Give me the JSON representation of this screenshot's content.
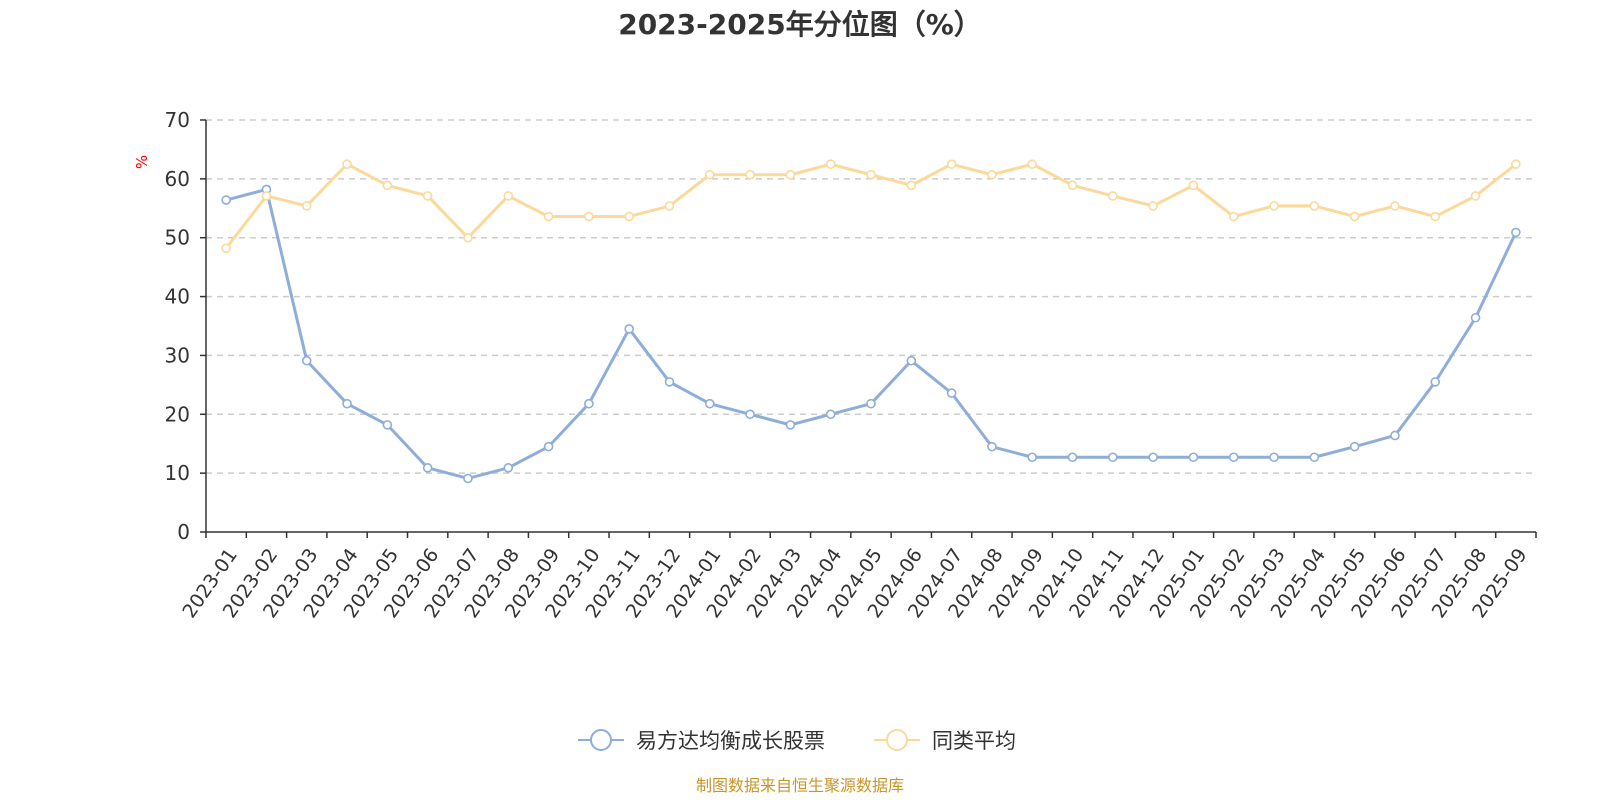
{
  "chart_data": {
    "type": "line",
    "title": "2023-2025年分位图（%）",
    "ylabel": "%",
    "xlabel": "",
    "ylim": [
      0,
      70
    ],
    "yticks": [
      0,
      10,
      20,
      30,
      40,
      50,
      60,
      70
    ],
    "grid": true,
    "legend_position": "bottom-center",
    "categories": [
      "2023-01",
      "2023-02",
      "2023-03",
      "2023-04",
      "2023-05",
      "2023-06",
      "2023-07",
      "2023-08",
      "2023-09",
      "2023-10",
      "2023-11",
      "2023-12",
      "2024-01",
      "2024-02",
      "2024-03",
      "2024-04",
      "2024-05",
      "2024-06",
      "2024-07",
      "2024-08",
      "2024-09",
      "2024-10",
      "2024-11",
      "2024-12",
      "2025-01",
      "2025-02",
      "2025-03",
      "2025-04",
      "2025-05",
      "2025-06",
      "2025-07",
      "2025-08",
      "2025-09"
    ],
    "series": [
      {
        "name": "易方达均衡成长股票",
        "color": "#8eadd9",
        "values": [
          56.4,
          58.2,
          29.1,
          21.8,
          18.2,
          10.9,
          9.1,
          10.9,
          14.5,
          21.8,
          34.5,
          25.5,
          21.8,
          20.0,
          18.2,
          20.0,
          21.8,
          29.1,
          23.6,
          14.5,
          12.7,
          12.7,
          12.7,
          12.7,
          12.7,
          12.7,
          12.7,
          12.7,
          14.5,
          16.4,
          25.5,
          36.4,
          50.9
        ]
      },
      {
        "name": "同类平均",
        "color": "#fbd99a",
        "values": [
          48.2,
          57.1,
          55.4,
          62.5,
          58.9,
          57.1,
          50.0,
          57.1,
          53.6,
          53.6,
          53.6,
          55.4,
          60.7,
          60.7,
          60.7,
          62.5,
          60.7,
          58.9,
          62.5,
          60.7,
          62.5,
          58.9,
          57.1,
          55.4,
          58.9,
          53.6,
          55.4,
          55.4,
          53.6,
          55.4,
          53.6,
          57.1,
          62.5
        ]
      }
    ],
    "source": "制图数据来自恒生聚源数据库",
    "source_color": "#c8952a",
    "ylabel_color": "#ff0000",
    "axis_color": "#333333",
    "grid_color": "#cccccc"
  }
}
